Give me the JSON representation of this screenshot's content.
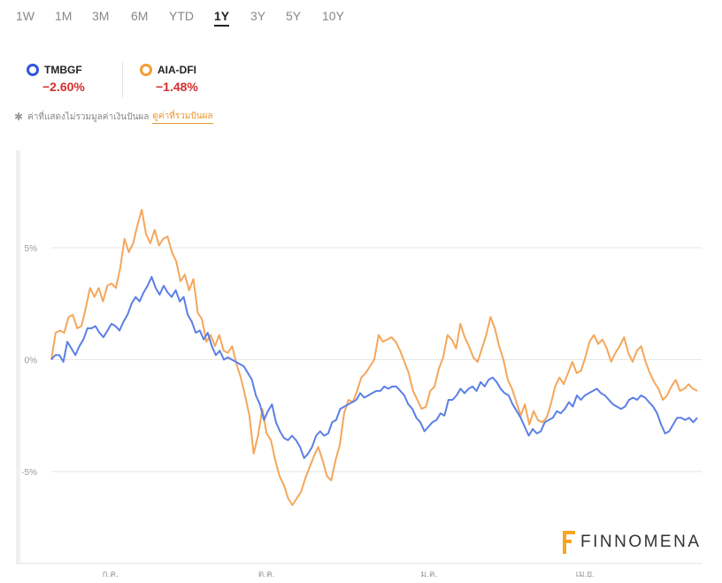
{
  "ranges": [
    "1W",
    "1M",
    "3M",
    "6M",
    "YTD",
    "1Y",
    "3Y",
    "5Y",
    "10Y"
  ],
  "active_range": "1Y",
  "legend": [
    {
      "name": "TMBGF",
      "change": "−2.60%",
      "color": "#3a5bd9"
    },
    {
      "name": "AIA-DFI",
      "change": "−1.48%",
      "color": "#f39c33"
    }
  ],
  "note": {
    "text": "ค่าที่แสดงไม่รวมมูลค่าเงินปันผล",
    "link": "ดูค่าที่รวมปันผล"
  },
  "logo": "FINNOMENA",
  "chart_data": {
    "type": "line",
    "yticks": [
      "5%",
      "0%",
      "-5%"
    ],
    "ytick_values": [
      5,
      0,
      -5
    ],
    "ylim": [
      -9,
      9.3
    ],
    "xticks": [
      "ก.ค.",
      "ต.ค.",
      "ม.ค.",
      "เม.ย."
    ],
    "xtick_positions": [
      0.05,
      0.29,
      0.54,
      0.78
    ],
    "series": [
      {
        "name": "TMBGF",
        "color": "#5b7fe6",
        "values": [
          0,
          0.2,
          0.2,
          -0.1,
          0.8,
          0.5,
          0.2,
          0.6,
          0.9,
          1.4,
          1.4,
          1.5,
          1.2,
          1,
          1.3,
          1.6,
          1.5,
          1.3,
          1.7,
          2,
          2.5,
          2.8,
          2.6,
          3,
          3.3,
          3.7,
          3.2,
          2.9,
          3.3,
          3,
          2.8,
          3.1,
          2.6,
          2.8,
          2,
          1.7,
          1.2,
          1.3,
          0.9,
          1.2,
          0.6,
          0.2,
          0.4,
          0,
          0.1,
          0,
          -0.1,
          -0.2,
          -0.3,
          -0.6,
          -0.9,
          -1.6,
          -2,
          -2.7,
          -2.3,
          -2,
          -2.8,
          -3.2,
          -3.5,
          -3.6,
          -3.4,
          -3.6,
          -3.9,
          -4.4,
          -4.2,
          -3.9,
          -3.4,
          -3.2,
          -3.4,
          -3.3,
          -2.8,
          -2.7,
          -2.2,
          -2.1,
          -2,
          -1.9,
          -1.8,
          -1.5,
          -1.7,
          -1.6,
          -1.5,
          -1.4,
          -1.4,
          -1.2,
          -1.3,
          -1.2,
          -1.2,
          -1.4,
          -1.6,
          -2,
          -2.2,
          -2.6,
          -2.8,
          -3.2,
          -3,
          -2.8,
          -2.7,
          -2.4,
          -2.5,
          -1.8,
          -1.8,
          -1.6,
          -1.3,
          -1.5,
          -1.3,
          -1.2,
          -1.4,
          -1,
          -1.2,
          -0.9,
          -0.8,
          -1,
          -1.3,
          -1.5,
          -1.6,
          -2,
          -2.3,
          -2.6,
          -3,
          -3.4,
          -3.1,
          -3.3,
          -3.2,
          -2.8,
          -2.7,
          -2.6,
          -2.3,
          -2.4,
          -2.2,
          -1.9,
          -2.1,
          -1.6,
          -1.8,
          -1.6,
          -1.5,
          -1.4,
          -1.3,
          -1.5,
          -1.6,
          -1.8,
          -2,
          -2.1,
          -2.2,
          -2.1,
          -1.8,
          -1.7,
          -1.8,
          -1.6,
          -1.7,
          -1.9,
          -2.1,
          -2.4,
          -2.9,
          -3.3,
          -3.2,
          -2.9,
          -2.6,
          -2.6,
          -2.7,
          -2.6,
          -2.8,
          -2.6
        ]
      },
      {
        "name": "AIA-DFI",
        "color": "#f5a65b",
        "values": [
          0,
          1.2,
          1.3,
          1.2,
          1.9,
          2,
          1.4,
          1.5,
          2.3,
          3.2,
          2.8,
          3.2,
          2.6,
          3.3,
          3.4,
          3.2,
          4.1,
          5.4,
          4.8,
          5.2,
          6,
          6.7,
          5.6,
          5.2,
          5.8,
          5.1,
          5.4,
          5.5,
          4.8,
          4.4,
          3.5,
          3.8,
          3.1,
          3.6,
          2.1,
          1.8,
          0.8,
          1.1,
          0.6,
          1.1,
          0.4,
          0.3,
          0.6,
          -0.2,
          -0.8,
          -1.6,
          -2.5,
          -4.2,
          -3.4,
          -2.2,
          -3.3,
          -3.6,
          -4.5,
          -5.2,
          -5.6,
          -6.2,
          -6.5,
          -6.2,
          -5.9,
          -5.3,
          -4.8,
          -4.3,
          -3.9,
          -4.5,
          -5.2,
          -5.4,
          -4.5,
          -3.8,
          -2.4,
          -1.8,
          -1.9,
          -1.4,
          -0.8,
          -0.6,
          -0.3,
          0,
          1.1,
          0.8,
          0.9,
          1,
          0.8,
          0.4,
          -0.1,
          -0.6,
          -1.4,
          -1.8,
          -2.2,
          -2.1,
          -1.4,
          -1.2,
          -0.4,
          0.1,
          1.1,
          0.9,
          0.5,
          1.6,
          1,
          0.6,
          0.1,
          -0.1,
          0.5,
          1.1,
          1.9,
          1.4,
          0.6,
          0,
          -0.9,
          -1.3,
          -1.9,
          -2.5,
          -2,
          -2.9,
          -2.3,
          -2.7,
          -2.8,
          -2.6,
          -2,
          -1.2,
          -0.8,
          -1.1,
          -0.6,
          -0.1,
          -0.6,
          -0.5,
          0.1,
          0.8,
          1.1,
          0.7,
          0.9,
          0.5,
          -0.1,
          0.3,
          0.6,
          1.0,
          0.3,
          -0.1,
          0.4,
          0.6,
          -0.1,
          -0.6,
          -1.0,
          -1.3,
          -1.8,
          -1.6,
          -1.2,
          -0.9,
          -1.4,
          -1.3,
          -1.1,
          -1.3,
          -1.4
        ]
      }
    ]
  }
}
